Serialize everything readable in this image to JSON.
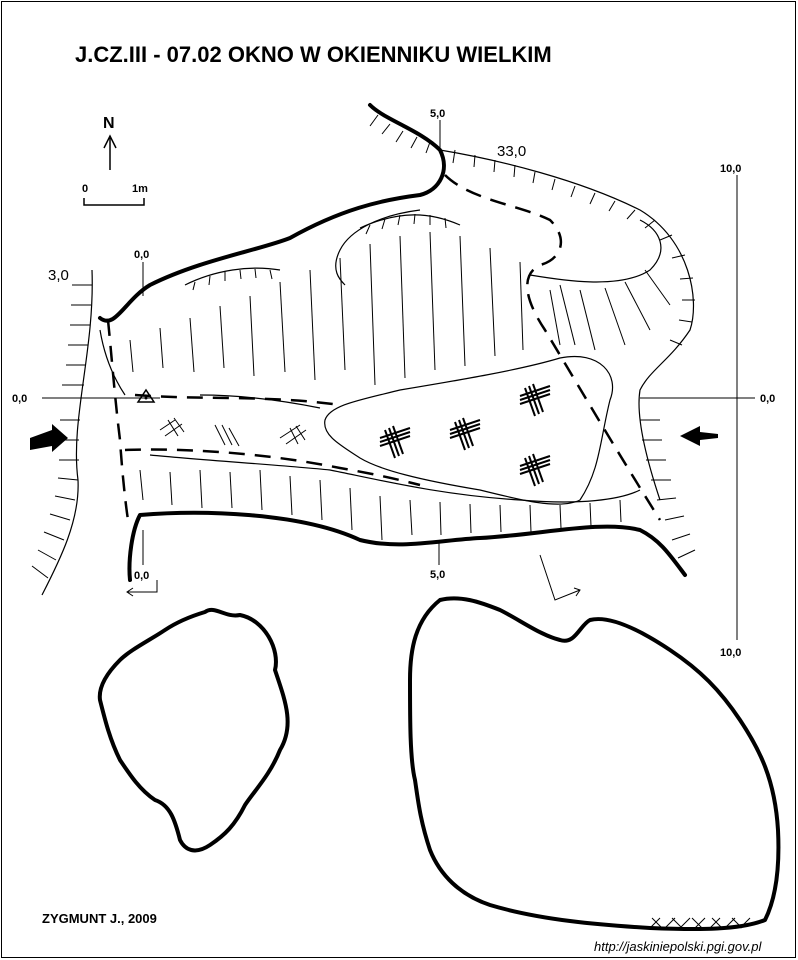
{
  "title": "J.CZ.III - 07.02  OKNO W OKIENNIKU WIELKIM",
  "north_label": "N",
  "scale": {
    "start": "0",
    "end": "1m"
  },
  "heights": {
    "top_mid": "5,0",
    "top_right": "33,0",
    "left_top": "3,0",
    "left_zero": "0,0",
    "upper_zero": "0,0",
    "right_top": "10,0",
    "right_zero": "0,0",
    "right_bottom": "10,0",
    "bottom_zero": "0,0",
    "bottom_mid": "5,0"
  },
  "author": "ZYGMUNT J., 2009",
  "url": "http://jaskiniepolski.pgi.gov.pl"
}
